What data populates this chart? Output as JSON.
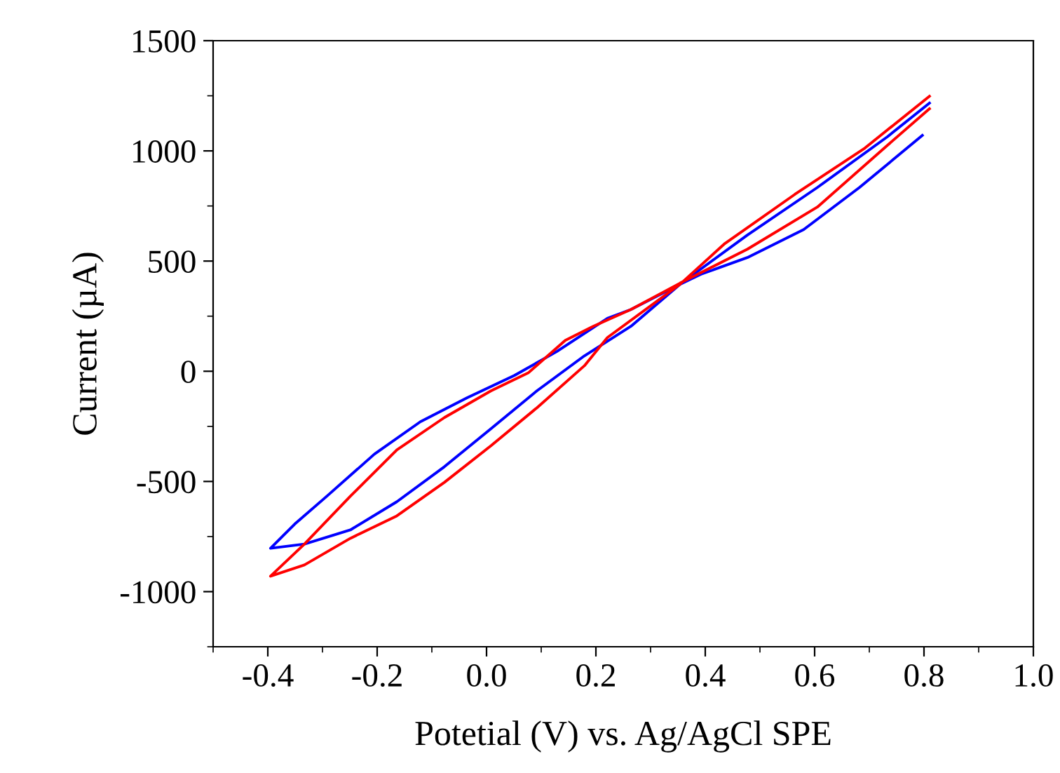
{
  "chart_data": {
    "type": "line",
    "xlabel": "Potetial (V) vs. Ag/AgCl SPE",
    "ylabel": "Current (µA)",
    "xlim": [
      -0.5,
      1.0
    ],
    "ylim": [
      -1250,
      1500
    ],
    "xticks": [
      {
        "value": -0.4,
        "label": "-0.4"
      },
      {
        "value": -0.2,
        "label": "-0.2"
      },
      {
        "value": 0.0,
        "label": "0.0"
      },
      {
        "value": 0.2,
        "label": "0.2"
      },
      {
        "value": 0.4,
        "label": "0.4"
      },
      {
        "value": 0.6,
        "label": "0.6"
      },
      {
        "value": 0.8,
        "label": "0.8"
      },
      {
        "value": 1.0,
        "label": "1.0"
      }
    ],
    "yticks": [
      {
        "value": -1000,
        "label": "-1000"
      },
      {
        "value": -500,
        "label": "-500"
      },
      0,
      500,
      1000,
      1500
    ],
    "grid": false,
    "marker": "none",
    "line_style": "solid",
    "series": [
      {
        "color": "#0000ff",
        "x": [
          0.797,
          0.682,
          0.58,
          0.477,
          0.392,
          0.354,
          0.264,
          0.221,
          0.128,
          0.051,
          -0.036,
          -0.121,
          -0.205,
          -0.292,
          -0.351,
          -0.395,
          -0.333,
          -0.249,
          -0.164,
          -0.077,
          0.008,
          0.092,
          0.179,
          0.264,
          0.354,
          0.477,
          0.605,
          0.733,
          0.81
        ],
        "values": [
          1070,
          834,
          643,
          516,
          440,
          395,
          280,
          240,
          89,
          -19,
          -121,
          -229,
          -376,
          -567,
          -694,
          -803,
          -784,
          -720,
          -592,
          -433,
          -261,
          -89,
          70,
          204,
          395,
          618,
          834,
          1064,
          1217
        ]
      },
      {
        "color": "#ff0000",
        "x": [
          0.81,
          0.733,
          0.605,
          0.477,
          0.354,
          0.264,
          0.195,
          0.144,
          0.077,
          0.008,
          -0.077,
          -0.164,
          -0.249,
          -0.333,
          -0.395,
          -0.333,
          -0.249,
          -0.164,
          -0.077,
          0.008,
          0.092,
          0.179,
          0.221,
          0.354,
          0.436,
          0.564,
          0.692,
          0.81
        ],
        "values": [
          1191,
          1025,
          745,
          554,
          400,
          280,
          204,
          140,
          -6,
          -89,
          -210,
          -357,
          -567,
          -784,
          -930,
          -879,
          -758,
          -656,
          -504,
          -338,
          -166,
          25,
          153,
          395,
          580,
          803,
          1013,
          1248
        ]
      }
    ]
  }
}
